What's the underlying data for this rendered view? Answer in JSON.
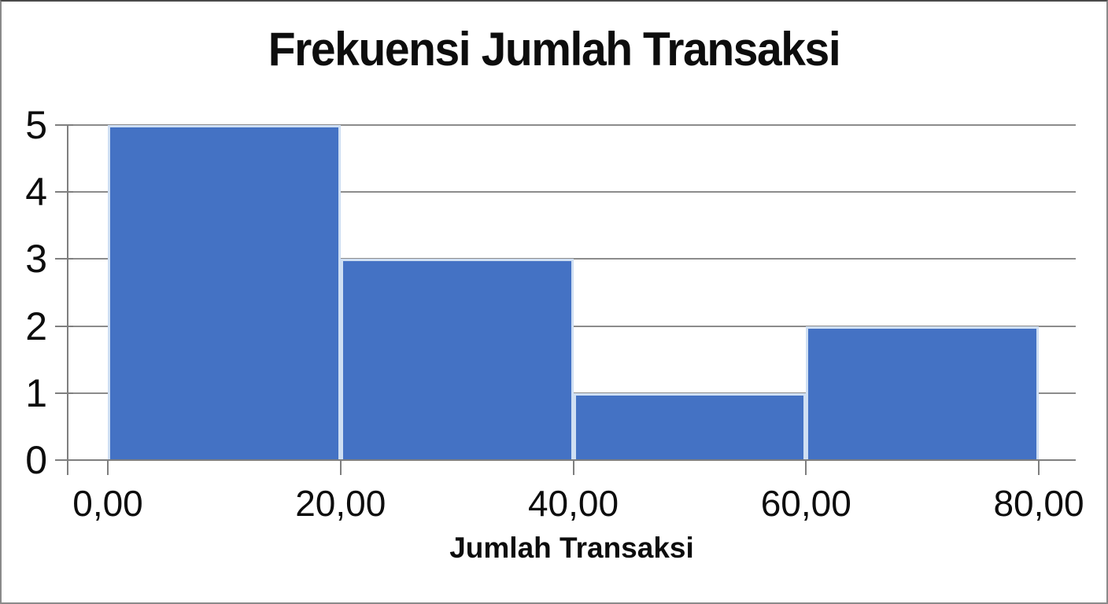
{
  "chart_data": {
    "type": "bar",
    "subtype": "histogram",
    "title": "Frekuensi Jumlah Transaksi",
    "xlabel": "Jumlah Transaksi",
    "ylabel": "",
    "bin_edges": [
      0,
      20,
      40,
      60,
      80
    ],
    "x_tick_labels": [
      "0,00",
      "20,00",
      "40,00",
      "60,00",
      "80,00"
    ],
    "values": [
      5,
      3,
      1,
      2
    ],
    "y_ticks": [
      0,
      1,
      2,
      3,
      4,
      5
    ],
    "ylim": [
      0,
      5
    ],
    "grid": "horizontal-only",
    "legend": "none",
    "colors": {
      "bar_fill": "#4472c4",
      "bar_border": "#cfdff3",
      "gridline": "#8c8c8c",
      "axis_line": "#7f7f7f",
      "text": "#0d0d0d",
      "frame_border": "#8a8a8a",
      "background": "#ffffff"
    }
  }
}
